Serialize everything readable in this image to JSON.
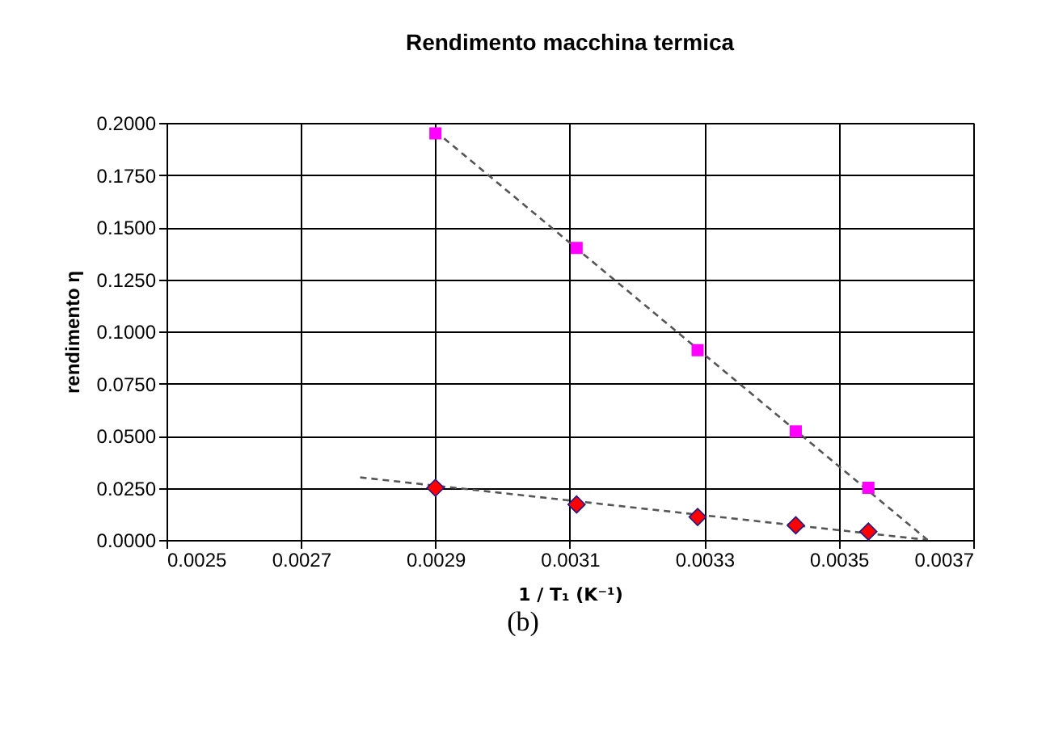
{
  "chart_data": {
    "type": "scatter",
    "title": "Rendimento macchina termica",
    "xlabel": "1 / T₁ (K⁻¹)",
    "ylabel": "rendimento η",
    "annotations": [
      "(b)"
    ],
    "xlim": [
      0.0025,
      0.0037
    ],
    "xticks": [
      0.0025,
      0.0027,
      0.0029,
      0.0031,
      0.0033,
      0.0035,
      0.0037
    ],
    "ylim": [
      0,
      0.2
    ],
    "yticks": [
      {
        "value": 0,
        "label": "0.0000"
      },
      {
        "value": 0.025,
        "label": "0.0250"
      },
      {
        "value": 0.05,
        "label": "0.0500"
      },
      {
        "value": 0.075,
        "label": "0.0750"
      },
      {
        "value": 0.1,
        "label": "0.1000"
      },
      {
        "value": 0.125,
        "label": "0.1250"
      },
      {
        "value": 0.15,
        "label": "0.1500"
      },
      {
        "value": 0.175,
        "label": "0.1750"
      },
      {
        "value": 0.2,
        "label": "0.2000"
      }
    ],
    "grid": true,
    "series": [
      {
        "type": "line",
        "color": "#555555",
        "line_style": "dashed",
        "marker": "none",
        "x": [
          0.0029,
          0.003632
        ],
        "values": [
          0.196,
          0.0
        ]
      },
      {
        "type": "line",
        "color": "#555555",
        "line_style": "dashed",
        "marker": "none",
        "x": [
          0.002788,
          0.003632
        ],
        "values": [
          0.03,
          0.0
        ]
      },
      {
        "color": "#ff00ff",
        "marker": "square",
        "x": [
          0.0029,
          0.00311,
          0.00329,
          0.003436,
          0.003544
        ],
        "values": [
          0.195,
          0.14,
          0.091,
          0.052,
          0.025
        ]
      },
      {
        "color": "#ff0000",
        "marker": "diamond",
        "x": [
          0.0029,
          0.00311,
          0.00329,
          0.003436,
          0.003544
        ],
        "values": [
          0.025,
          0.017,
          0.011,
          0.007,
          0.004
        ]
      }
    ]
  }
}
